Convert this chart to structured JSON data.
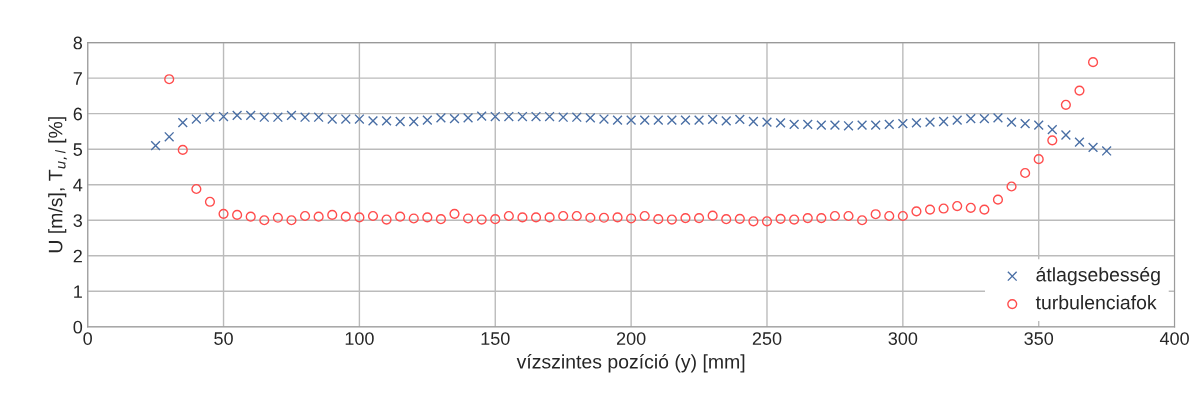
{
  "chart_data": {
    "type": "scatter",
    "xlabel": "vízszintes pozíció (y) [mm]",
    "ylabel": "U [m/s], T$_{u,l}$ [%]",
    "xlim": [
      0,
      400
    ],
    "xticks": [
      0,
      50,
      100,
      150,
      200,
      250,
      300,
      350,
      400
    ],
    "ylim": [
      0,
      8
    ],
    "yticks": [
      0,
      1,
      2,
      3,
      4,
      5,
      6,
      7,
      8
    ],
    "grid": true,
    "legend": "bottom right",
    "series": [
      {
        "name": "átlagsebesség",
        "color": "#4a6fa5",
        "marker": "cross",
        "x": [
          25,
          30,
          35,
          40,
          45,
          50,
          55,
          60,
          65,
          70,
          75,
          80,
          85,
          90,
          95,
          100,
          105,
          110,
          115,
          120,
          125,
          130,
          135,
          140,
          145,
          150,
          155,
          160,
          165,
          170,
          175,
          180,
          185,
          190,
          195,
          200,
          205,
          210,
          215,
          220,
          225,
          230,
          235,
          240,
          245,
          250,
          255,
          260,
          265,
          270,
          275,
          280,
          285,
          290,
          295,
          300,
          305,
          310,
          315,
          320,
          325,
          330,
          335,
          340,
          345,
          350,
          355,
          360,
          365,
          370,
          375
        ],
        "values": [
          5.1,
          5.35,
          5.75,
          5.85,
          5.9,
          5.92,
          5.95,
          5.95,
          5.9,
          5.9,
          5.95,
          5.9,
          5.9,
          5.85,
          5.85,
          5.85,
          5.8,
          5.8,
          5.78,
          5.78,
          5.82,
          5.88,
          5.86,
          5.88,
          5.93,
          5.92,
          5.92,
          5.92,
          5.92,
          5.92,
          5.9,
          5.9,
          5.88,
          5.85,
          5.82,
          5.82,
          5.82,
          5.82,
          5.82,
          5.82,
          5.82,
          5.84,
          5.8,
          5.84,
          5.78,
          5.76,
          5.74,
          5.7,
          5.7,
          5.68,
          5.68,
          5.66,
          5.68,
          5.68,
          5.7,
          5.72,
          5.74,
          5.76,
          5.78,
          5.82,
          5.86,
          5.86,
          5.88,
          5.76,
          5.72,
          5.68,
          5.55,
          5.4,
          5.2,
          5.05,
          4.95
        ]
      },
      {
        "name": "turbulenciafok",
        "color": "#ff4d4d",
        "marker": "circle",
        "x": [
          30,
          35,
          40,
          45,
          50,
          55,
          60,
          65,
          70,
          75,
          80,
          85,
          90,
          95,
          100,
          105,
          110,
          115,
          120,
          125,
          130,
          135,
          140,
          145,
          150,
          155,
          160,
          165,
          170,
          175,
          180,
          185,
          190,
          195,
          200,
          205,
          210,
          215,
          220,
          225,
          230,
          235,
          240,
          245,
          250,
          255,
          260,
          265,
          270,
          275,
          280,
          285,
          290,
          295,
          300,
          305,
          310,
          315,
          320,
          325,
          330,
          335,
          340,
          345,
          350,
          355,
          360,
          365,
          370
        ],
        "values": [
          6.97,
          4.98,
          3.88,
          3.52,
          3.18,
          3.15,
          3.1,
          3.0,
          3.07,
          3.0,
          3.12,
          3.1,
          3.15,
          3.1,
          3.08,
          3.12,
          3.02,
          3.1,
          3.05,
          3.08,
          3.03,
          3.18,
          3.05,
          3.02,
          3.03,
          3.12,
          3.08,
          3.08,
          3.08,
          3.12,
          3.12,
          3.07,
          3.07,
          3.08,
          3.05,
          3.12,
          3.03,
          3.02,
          3.06,
          3.06,
          3.13,
          3.03,
          3.04,
          2.97,
          2.97,
          3.04,
          3.02,
          3.06,
          3.06,
          3.12,
          3.12,
          3.0,
          3.17,
          3.12,
          3.12,
          3.25,
          3.3,
          3.33,
          3.4,
          3.35,
          3.3,
          3.58,
          3.95,
          4.33,
          4.72,
          5.25,
          6.25,
          6.65,
          7.45
        ]
      }
    ]
  }
}
